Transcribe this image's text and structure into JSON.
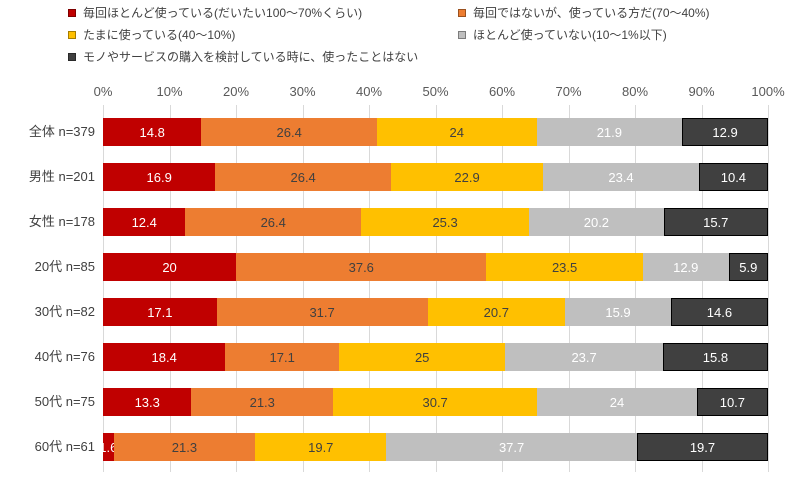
{
  "chart_data": {
    "type": "bar",
    "stacked": true,
    "orientation": "horizontal",
    "title": "",
    "xlabel": "",
    "ylabel": "",
    "grid": true,
    "legend_position": "top",
    "x_axis": {
      "min": 0,
      "max": 100,
      "tick_labels": [
        "0%",
        "10%",
        "20%",
        "30%",
        "40%",
        "50%",
        "60%",
        "70%",
        "80%",
        "90%",
        "100%"
      ]
    },
    "series": [
      {
        "name": "毎回ほとんど使っている(だいたい100〜70%くらい)",
        "color": "#c00000",
        "label_color": "#ffffff",
        "border": "none"
      },
      {
        "name": "毎回ではないが、使っている方だ(70〜40%)",
        "color": "#ed7d31",
        "label_color": "#404040",
        "border": "none"
      },
      {
        "name": "たまに使っている(40〜10%)",
        "color": "#ffc000",
        "label_color": "#404040",
        "border": "none"
      },
      {
        "name": "ほとんど使っていない(10〜1%以下)",
        "color": "#bfbfbf",
        "label_color": "#ffffff",
        "border": "none"
      },
      {
        "name": "モノやサービスの購入を検討している時に、使ったことはない",
        "color": "#404040",
        "label_color": "#ffffff",
        "border": "#000000"
      }
    ],
    "categories": [
      "全体 n=379",
      "男性 n=201",
      "女性 n=178",
      "20代 n=85",
      "30代 n=82",
      "40代 n=76",
      "50代 n=75",
      "60代 n=61"
    ],
    "rows": [
      {
        "category": "全体 n=379",
        "values": [
          14.8,
          26.4,
          24,
          21.9,
          12.9
        ],
        "labels": [
          "14.8",
          "26.4",
          "24",
          "21.9",
          "12.9"
        ]
      },
      {
        "category": "男性 n=201",
        "values": [
          16.9,
          26.4,
          22.9,
          23.4,
          10.4
        ],
        "labels": [
          "16.9",
          "26.4",
          "22.9",
          "23.4",
          "10.4"
        ]
      },
      {
        "category": "女性 n=178",
        "values": [
          12.4,
          26.4,
          25.3,
          20.2,
          15.7
        ],
        "labels": [
          "12.4",
          "26.4",
          "25.3",
          "20.2",
          "15.7"
        ]
      },
      {
        "category": "20代 n=85",
        "values": [
          20,
          37.6,
          23.5,
          12.9,
          5.9
        ],
        "labels": [
          "20",
          "37.6",
          "23.5",
          "12.9",
          "5.9"
        ]
      },
      {
        "category": "30代 n=82",
        "values": [
          17.1,
          31.7,
          20.7,
          15.9,
          14.6
        ],
        "labels": [
          "17.1",
          "31.7",
          "20.7",
          "15.9",
          "14.6"
        ]
      },
      {
        "category": "40代 n=76",
        "values": [
          18.4,
          17.1,
          25,
          23.7,
          15.8
        ],
        "labels": [
          "18.4",
          "17.1",
          "25",
          "23.7",
          "15.8"
        ]
      },
      {
        "category": "50代 n=75",
        "values": [
          13.3,
          21.3,
          30.7,
          24,
          10.7
        ],
        "labels": [
          "13.3",
          "21.3",
          "30.7",
          "24",
          "10.7"
        ]
      },
      {
        "category": "60代 n=61",
        "values": [
          1.6,
          21.3,
          19.7,
          37.7,
          19.7
        ],
        "labels": [
          "1.6",
          "21.3",
          "19.7",
          "37.7",
          "19.7"
        ]
      }
    ]
  },
  "colors": {
    "gridline": "#d9d9d9",
    "axis_text": "#595959",
    "category_text": "#404040",
    "legend_text": "#404040",
    "background": "#ffffff"
  }
}
